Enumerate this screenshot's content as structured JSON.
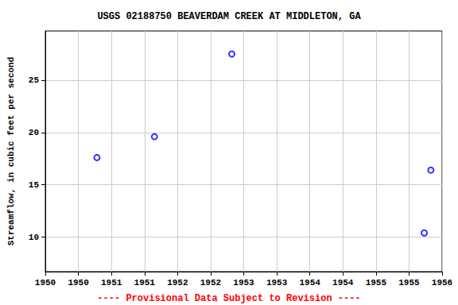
{
  "chart_data": {
    "type": "scatter",
    "title": "USGS 02188750 BEAVERDAM CREEK AT MIDDLETON, GA",
    "y_label": "Streamflow, in cubic feet per second",
    "annotations": [
      "---- Provisional Data Subject to Revision ----"
    ],
    "x": [
      1950.78,
      1951.65,
      1952.82,
      1955.73,
      1955.83
    ],
    "values": [
      17.6,
      19.6,
      27.5,
      10.4,
      16.4
    ],
    "color": "#0000ff",
    "marker": "open_circle",
    "xlim": [
      1950,
      1956
    ],
    "xticks": [
      1950,
      {
        "value": 1950.5,
        "label": "1950"
      },
      1951,
      {
        "value": 1951.5,
        "label": "1951"
      },
      1952,
      {
        "value": 1952.5,
        "label": "1952"
      },
      1953,
      {
        "value": 1953.5,
        "label": "1953"
      },
      1954,
      {
        "value": 1954.5,
        "label": "1954"
      },
      1955,
      {
        "value": 1955.5,
        "label": "1955"
      },
      1956
    ],
    "ylim": [
      6.7,
      29.7
    ],
    "yticks": [
      10,
      15,
      20,
      25
    ],
    "grid": true
  }
}
